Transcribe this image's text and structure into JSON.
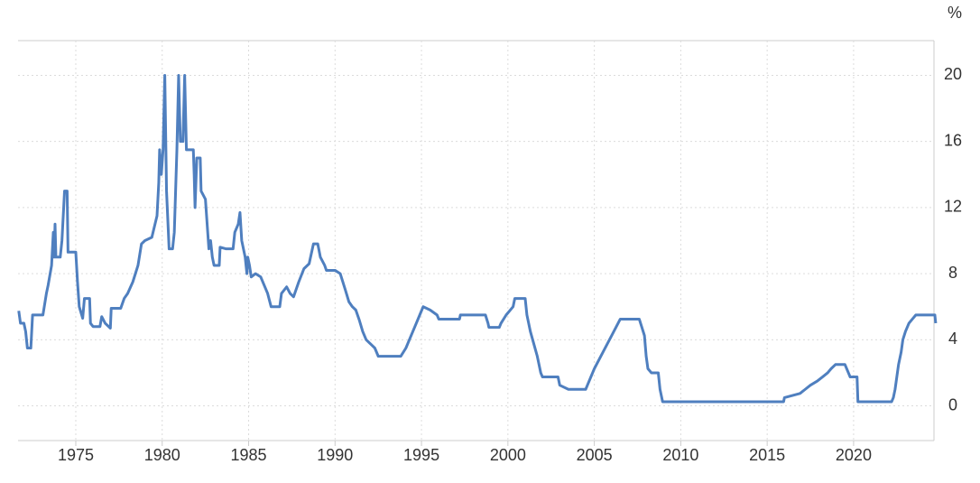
{
  "chart_data": {
    "type": "line",
    "ylabel": "%",
    "grid": true,
    "xlim": [
      1971.66,
      2024.65
    ],
    "ylim": [
      -2.1,
      22.1
    ],
    "xticks": [
      1975,
      1980,
      1985,
      1990,
      1995,
      2000,
      2005,
      2010,
      2015,
      2020
    ],
    "yticks": [
      0,
      4,
      8,
      12,
      16,
      20
    ],
    "x": [
      1971.7,
      1971.8,
      1972.0,
      1972.1,
      1972.2,
      1972.4,
      1972.5,
      1973.1,
      1973.3,
      1973.4,
      1973.6,
      1973.7,
      1973.75,
      1973.8,
      1973.85,
      1974.1,
      1974.2,
      1974.35,
      1974.5,
      1974.55,
      1975.0,
      1975.1,
      1975.2,
      1975.4,
      1975.5,
      1975.8,
      1975.85,
      1976.0,
      1976.4,
      1976.5,
      1976.7,
      1977.0,
      1977.05,
      1977.6,
      1977.8,
      1978.0,
      1978.3,
      1978.6,
      1978.8,
      1979.0,
      1979.4,
      1979.7,
      1979.8,
      1979.85,
      1979.95,
      1980.05,
      1980.15,
      1980.25,
      1980.4,
      1980.6,
      1980.7,
      1980.85,
      1980.95,
      1981.05,
      1981.2,
      1981.3,
      1981.4,
      1981.8,
      1981.85,
      1981.9,
      1982.0,
      1982.2,
      1982.25,
      1982.5,
      1982.6,
      1982.7,
      1982.8,
      1982.9,
      1983.0,
      1983.3,
      1983.35,
      1983.7,
      1984.1,
      1984.2,
      1984.4,
      1984.5,
      1984.6,
      1984.8,
      1984.9,
      1984.95,
      1985.05,
      1985.15,
      1985.4,
      1985.7,
      1985.9,
      1986.1,
      1986.3,
      1986.8,
      1986.9,
      1987.2,
      1987.4,
      1987.6,
      1987.9,
      1988.2,
      1988.5,
      1988.75,
      1989.0,
      1989.15,
      1989.4,
      1989.5,
      1990.0,
      1990.3,
      1990.6,
      1990.8,
      1991.0,
      1991.2,
      1991.4,
      1991.6,
      1991.8,
      1992.1,
      1992.3,
      1992.5,
      1993.8,
      1994.1,
      1994.3,
      1994.5,
      1994.7,
      1994.9,
      1995.1,
      1995.5,
      1995.9,
      1996.0,
      1997.2,
      1997.25,
      1998.7,
      1998.85,
      1998.9,
      1999.5,
      1999.6,
      1999.9,
      2000.1,
      2000.3,
      2000.4,
      2001.0,
      2001.1,
      2001.3,
      2001.5,
      2001.7,
      2001.9,
      2002.0,
      2002.9,
      2003.0,
      2003.5,
      2004.5,
      2004.6,
      2005.0,
      2005.5,
      2006.0,
      2006.5,
      2007.6,
      2007.75,
      2007.9,
      2008.0,
      2008.1,
      2008.3,
      2008.7,
      2008.8,
      2008.95,
      2015.95,
      2016.0,
      2016.9,
      2017.2,
      2017.5,
      2017.9,
      2018.2,
      2018.5,
      2018.7,
      2018.95,
      2019.5,
      2019.6,
      2019.7,
      2019.8,
      2020.2,
      2020.25,
      2022.2,
      2022.3,
      2022.4,
      2022.5,
      2022.6,
      2022.75,
      2022.85,
      2023.0,
      2023.2,
      2023.4,
      2023.6,
      2024.7,
      2024.75
    ],
    "series": [
      {
        "color": "#4f7fbf",
        "values": [
          5.75,
          5.0,
          5.0,
          4.5,
          3.5,
          3.5,
          5.5,
          5.5,
          6.8,
          7.3,
          8.5,
          10.5,
          9.0,
          11.0,
          9.0,
          9.0,
          10.0,
          13.0,
          13.0,
          9.3,
          9.3,
          7.5,
          6.0,
          5.3,
          6.5,
          6.5,
          5.0,
          4.8,
          4.8,
          5.4,
          5.0,
          4.7,
          5.9,
          5.9,
          6.5,
          6.8,
          7.5,
          8.5,
          9.8,
          10.0,
          10.2,
          11.5,
          13.5,
          15.5,
          14.0,
          15.5,
          20.0,
          13.0,
          9.5,
          9.5,
          10.5,
          15.5,
          20.0,
          16.0,
          16.0,
          20.0,
          15.5,
          15.5,
          14.0,
          12.0,
          15.0,
          15.0,
          13.0,
          12.5,
          11.0,
          9.5,
          10.0,
          9.0,
          8.5,
          8.5,
          9.6,
          9.5,
          9.5,
          10.5,
          11.0,
          11.7,
          10.0,
          9.0,
          8.0,
          9.0,
          8.5,
          7.8,
          8.0,
          7.8,
          7.3,
          6.8,
          6.0,
          6.0,
          6.8,
          7.2,
          6.8,
          6.6,
          7.5,
          8.3,
          8.6,
          9.8,
          9.8,
          9.0,
          8.5,
          8.2,
          8.2,
          8.0,
          7.0,
          6.3,
          6.0,
          5.8,
          5.2,
          4.5,
          4.0,
          3.7,
          3.5,
          3.0,
          3.0,
          3.5,
          4.0,
          4.5,
          5.0,
          5.5,
          6.0,
          5.8,
          5.5,
          5.25,
          5.25,
          5.5,
          5.5,
          5.0,
          4.75,
          4.75,
          5.0,
          5.5,
          5.75,
          6.0,
          6.5,
          6.5,
          5.5,
          4.5,
          3.75,
          3.0,
          2.0,
          1.75,
          1.75,
          1.25,
          1.0,
          1.0,
          1.25,
          2.25,
          3.25,
          4.25,
          5.25,
          5.25,
          4.75,
          4.25,
          3.0,
          2.25,
          2.0,
          2.0,
          1.0,
          0.25,
          0.25,
          0.5,
          0.75,
          1.0,
          1.25,
          1.5,
          1.75,
          2.0,
          2.25,
          2.5,
          2.5,
          2.25,
          2.0,
          1.75,
          1.75,
          0.25,
          0.25,
          0.5,
          1.0,
          1.75,
          2.5,
          3.25,
          4.0,
          4.5,
          5.0,
          5.25,
          5.5,
          5.5,
          5.0
        ]
      }
    ]
  }
}
